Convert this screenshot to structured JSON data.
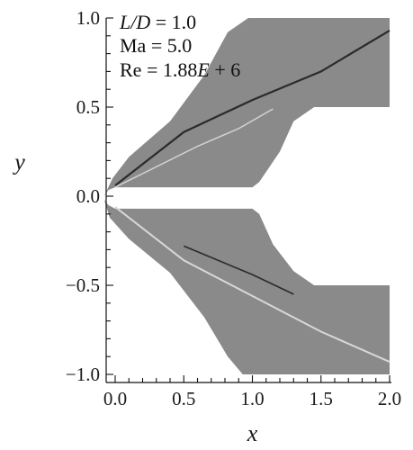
{
  "chart_data": {
    "type": "image-plot",
    "title": "",
    "xlabel": "x",
    "ylabel": "y",
    "xlim": [
      -0.1,
      2.0
    ],
    "ylim": [
      -1.0,
      1.0
    ],
    "grid": false,
    "x_ticks": [
      "0.0",
      "0.5",
      "1.0",
      "1.5",
      "2.0"
    ],
    "x_tick_values": [
      0.0,
      0.5,
      1.0,
      1.5,
      2.0
    ],
    "y_ticks": [
      "1.0",
      "0.5",
      "0.0",
      "−0.5",
      "−1.0"
    ],
    "y_tick_values": [
      1.0,
      0.5,
      0.0,
      -0.5,
      -1.0
    ],
    "annotations": {
      "ld": {
        "var": "L/D",
        "rest": " = 1.0"
      },
      "ma": "Ma = 5.0",
      "re": {
        "pre": "Re = 1.88",
        "var": "E",
        "post": " + 6"
      }
    },
    "domain": {
      "upper": {
        "inner": [
          [
            -0.08,
            0.0
          ],
          [
            -0.05,
            0.035
          ],
          [
            0.0,
            0.05
          ],
          [
            0.5,
            0.05
          ],
          [
            0.85,
            0.05
          ],
          [
            1.0,
            0.05
          ]
        ],
        "outer": [
          [
            -0.08,
            0.0
          ],
          [
            -0.02,
            0.1
          ],
          [
            0.1,
            0.22
          ],
          [
            0.4,
            0.42
          ],
          [
            0.65,
            0.68
          ],
          [
            0.82,
            0.92
          ],
          [
            0.97,
            1.0
          ],
          [
            2.0,
            1.0
          ]
        ],
        "right": [
          [
            2.0,
            1.0
          ],
          [
            2.0,
            0.5
          ],
          [
            1.45,
            0.5
          ],
          [
            1.3,
            0.42
          ],
          [
            1.2,
            0.25
          ],
          [
            1.05,
            0.08
          ],
          [
            1.0,
            0.05
          ]
        ]
      },
      "lower": {
        "inner": [
          [
            -0.08,
            -0.02
          ],
          [
            -0.05,
            -0.05
          ],
          [
            0.0,
            -0.07
          ],
          [
            1.0,
            -0.07
          ]
        ],
        "outer": [
          [
            -0.08,
            -0.02
          ],
          [
            -0.04,
            -0.12
          ],
          [
            0.1,
            -0.24
          ],
          [
            0.4,
            -0.43
          ],
          [
            0.65,
            -0.68
          ],
          [
            0.82,
            -0.9
          ],
          [
            0.93,
            -1.0
          ],
          [
            2.0,
            -1.0
          ]
        ],
        "right": [
          [
            2.0,
            -1.0
          ],
          [
            2.0,
            -0.5
          ],
          [
            1.45,
            -0.5
          ],
          [
            1.3,
            -0.42
          ],
          [
            1.15,
            -0.27
          ],
          [
            1.05,
            -0.1
          ],
          [
            1.0,
            -0.07
          ]
        ]
      },
      "fill_color": "#8a8a8a",
      "dark_shock_color": "#2b2b2b",
      "light_shock_color": "#d8d8d8"
    },
    "shocks": {
      "upper_dark": [
        [
          0.0,
          0.06
        ],
        [
          0.5,
          0.36
        ],
        [
          1.0,
          0.54
        ],
        [
          1.5,
          0.7
        ],
        [
          2.0,
          0.93
        ]
      ],
      "upper_light": [
        [
          0.0,
          0.05
        ],
        [
          0.6,
          0.28
        ],
        [
          0.9,
          0.38
        ],
        [
          1.15,
          0.49
        ]
      ],
      "lower_light": [
        [
          0.0,
          -0.06
        ],
        [
          0.5,
          -0.36
        ],
        [
          1.0,
          -0.56
        ],
        [
          1.5,
          -0.76
        ],
        [
          2.0,
          -0.93
        ]
      ],
      "lower_dark": [
        [
          0.5,
          -0.28
        ],
        [
          1.0,
          -0.44
        ],
        [
          1.3,
          -0.55
        ]
      ]
    }
  }
}
